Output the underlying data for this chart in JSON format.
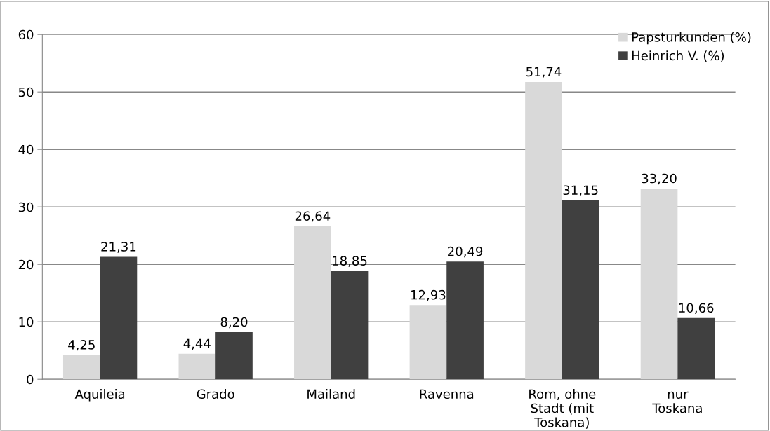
{
  "chart_data": {
    "type": "bar",
    "categories": [
      "Aquileia",
      "Grado",
      "Mailand",
      "Ravenna",
      "Rom, ohne Stadt (mit Toskana)",
      "nur Toskana"
    ],
    "series": [
      {
        "name": "Papsturkunden (%)",
        "color": "#d9d9d9",
        "values": [
          4.25,
          4.44,
          26.64,
          12.93,
          51.74,
          33.2
        ],
        "value_labels": [
          "4,25",
          "4,44",
          "26,64",
          "12,93",
          "51,74",
          "33,20"
        ]
      },
      {
        "name": "Heinrich V. (%)",
        "color": "#404040",
        "values": [
          21.31,
          8.2,
          18.85,
          20.49,
          31.15,
          10.66
        ],
        "value_labels": [
          "21,31",
          "8,20",
          "18,85",
          "20,49",
          "31,15",
          "10,66"
        ]
      }
    ],
    "ylim": [
      0,
      60
    ],
    "yticks": [
      0,
      10,
      20,
      30,
      40,
      50,
      60
    ],
    "grid": "y",
    "legend": "top right"
  }
}
